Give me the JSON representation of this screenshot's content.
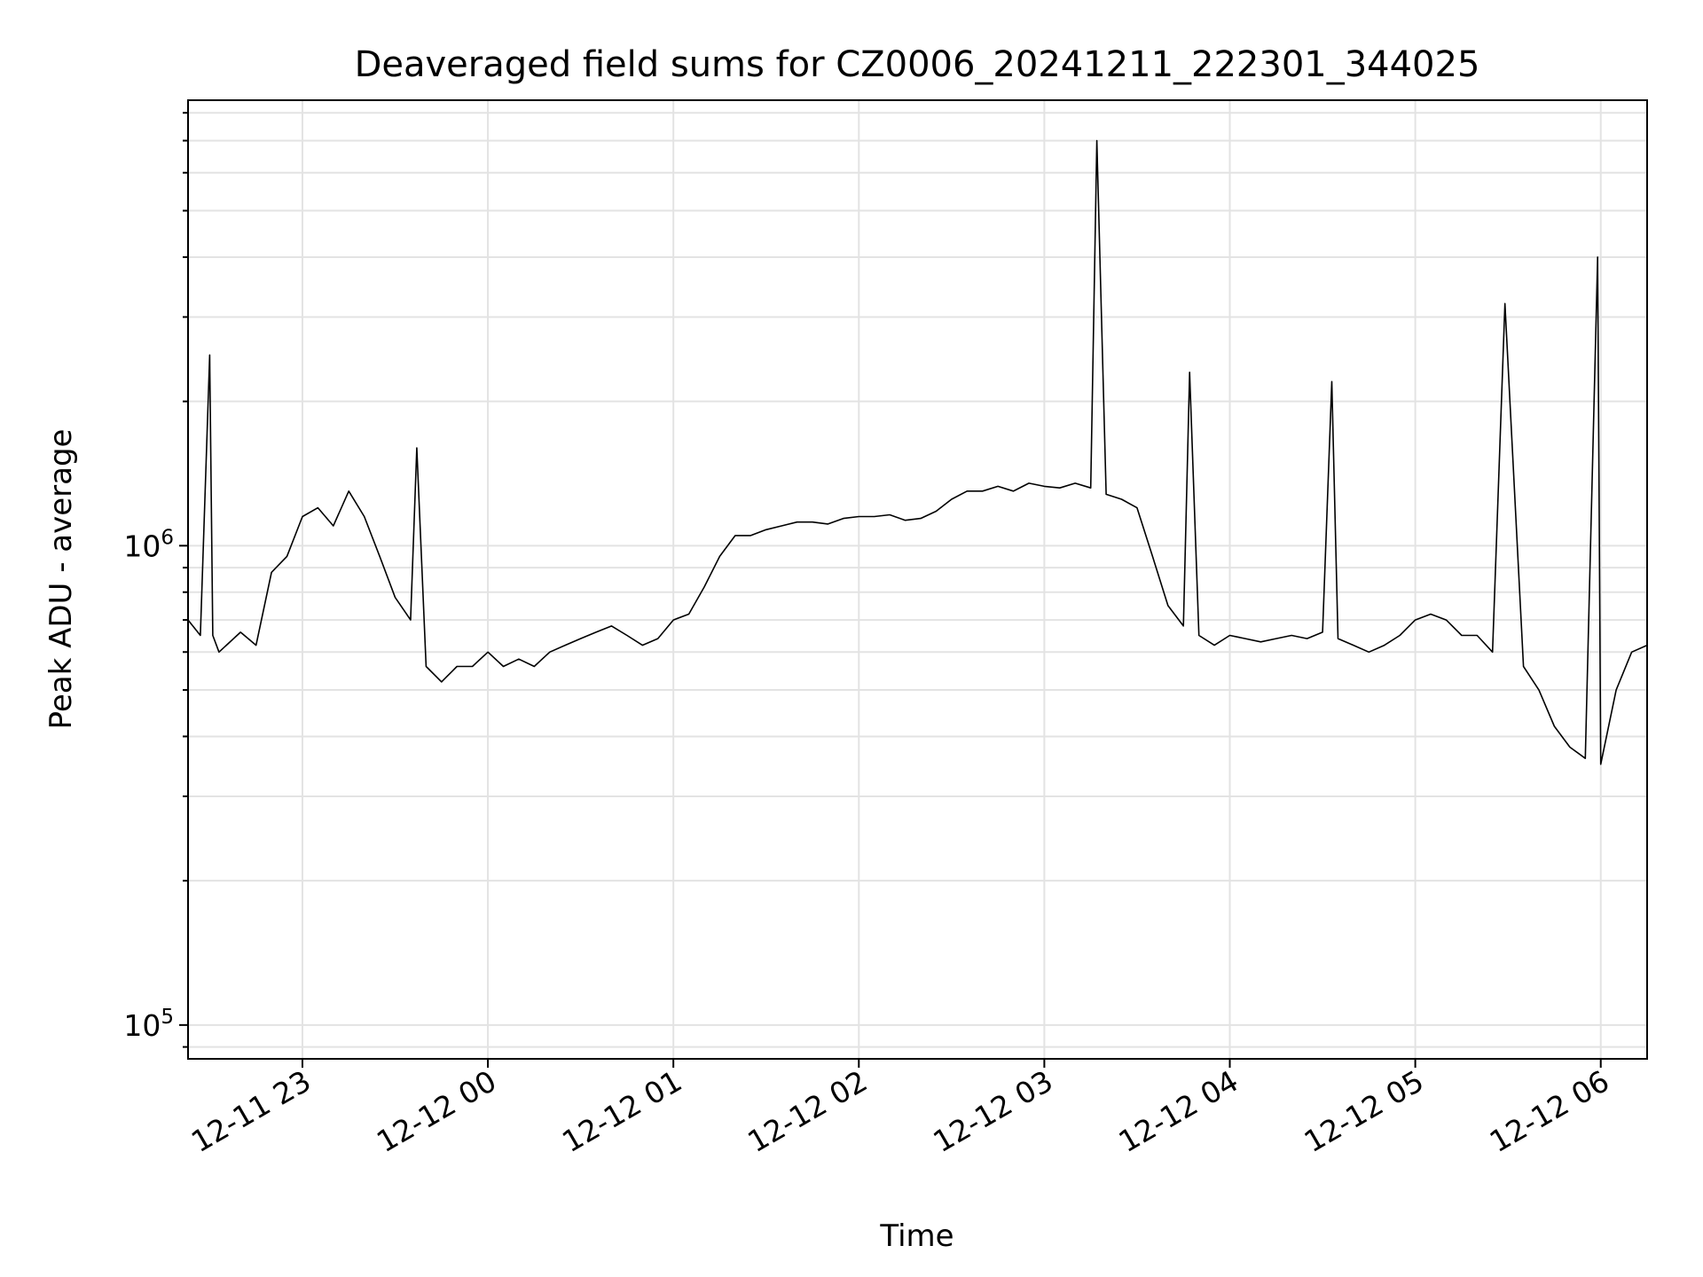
{
  "chart_data": {
    "type": "line",
    "title": "Deaveraged field sums for CZ0006_20241211_222301_344025",
    "xlabel": "Time",
    "ylabel": "Peak ADU - average",
    "yscale": "log",
    "xlim": [
      "2024-12-11 22:23",
      "2024-12-12 06:15"
    ],
    "ylim": [
      85000,
      8500000
    ],
    "grid": true,
    "line_color": "#000000",
    "x_tick_labels": [
      "12-11 23",
      "12-12 00",
      "12-12 01",
      "12-12 02",
      "12-12 03",
      "12-12 04",
      "12-12 05",
      "12-12 06"
    ],
    "x_tick_times": [
      "2024-12-11 23:00",
      "2024-12-12 00:00",
      "2024-12-12 01:00",
      "2024-12-12 02:00",
      "2024-12-12 03:00",
      "2024-12-12 04:00",
      "2024-12-12 05:00",
      "2024-12-12 06:00"
    ],
    "y_tick_labels": [
      {
        "base": "10",
        "exp": "5",
        "value": 100000
      },
      {
        "base": "10",
        "exp": "6",
        "value": 1000000
      }
    ],
    "series": [
      {
        "time": [
          "2024-12-11 22:23",
          "2024-12-11 22:27",
          "2024-12-11 22:30",
          "2024-12-11 22:31",
          "2024-12-11 22:33",
          "2024-12-11 22:40",
          "2024-12-11 22:45",
          "2024-12-11 22:50",
          "2024-12-11 22:55",
          "2024-12-11 23:00",
          "2024-12-11 23:05",
          "2024-12-11 23:10",
          "2024-12-11 23:15",
          "2024-12-11 23:20",
          "2024-12-11 23:25",
          "2024-12-11 23:30",
          "2024-12-11 23:35",
          "2024-12-11 23:37",
          "2024-12-11 23:40",
          "2024-12-11 23:45",
          "2024-12-11 23:50",
          "2024-12-11 23:55",
          "2024-12-12 00:00",
          "2024-12-12 00:05",
          "2024-12-12 00:10",
          "2024-12-12 00:15",
          "2024-12-12 00:20",
          "2024-12-12 00:25",
          "2024-12-12 00:30",
          "2024-12-12 00:35",
          "2024-12-12 00:40",
          "2024-12-12 00:45",
          "2024-12-12 00:50",
          "2024-12-12 00:55",
          "2024-12-12 01:00",
          "2024-12-12 01:05",
          "2024-12-12 01:10",
          "2024-12-12 01:15",
          "2024-12-12 01:20",
          "2024-12-12 01:25",
          "2024-12-12 01:30",
          "2024-12-12 01:35",
          "2024-12-12 01:40",
          "2024-12-12 01:45",
          "2024-12-12 01:50",
          "2024-12-12 01:55",
          "2024-12-12 02:00",
          "2024-12-12 02:05",
          "2024-12-12 02:10",
          "2024-12-12 02:15",
          "2024-12-12 02:20",
          "2024-12-12 02:25",
          "2024-12-12 02:30",
          "2024-12-12 02:35",
          "2024-12-12 02:40",
          "2024-12-12 02:45",
          "2024-12-12 02:50",
          "2024-12-12 02:55",
          "2024-12-12 03:00",
          "2024-12-12 03:05",
          "2024-12-12 03:10",
          "2024-12-12 03:15",
          "2024-12-12 03:17",
          "2024-12-12 03:20",
          "2024-12-12 03:25",
          "2024-12-12 03:30",
          "2024-12-12 03:35",
          "2024-12-12 03:40",
          "2024-12-12 03:45",
          "2024-12-12 03:47",
          "2024-12-12 03:50",
          "2024-12-12 03:55",
          "2024-12-12 04:00",
          "2024-12-12 04:05",
          "2024-12-12 04:10",
          "2024-12-12 04:15",
          "2024-12-12 04:20",
          "2024-12-12 04:25",
          "2024-12-12 04:30",
          "2024-12-12 04:33",
          "2024-12-12 04:35",
          "2024-12-12 04:40",
          "2024-12-12 04:45",
          "2024-12-12 04:50",
          "2024-12-12 04:55",
          "2024-12-12 05:00",
          "2024-12-12 05:05",
          "2024-12-12 05:10",
          "2024-12-12 05:15",
          "2024-12-12 05:20",
          "2024-12-12 05:25",
          "2024-12-12 05:29",
          "2024-12-12 05:35",
          "2024-12-12 05:40",
          "2024-12-12 05:45",
          "2024-12-12 05:50",
          "2024-12-12 05:55",
          "2024-12-12 05:59",
          "2024-12-12 06:00",
          "2024-12-12 06:05",
          "2024-12-12 06:10",
          "2024-12-12 06:15"
        ],
        "values": [
          700000,
          650000,
          2500000,
          650000,
          600000,
          660000,
          620000,
          880000,
          950000,
          1150000,
          1200000,
          1100000,
          1300000,
          1150000,
          950000,
          780000,
          700000,
          1600000,
          560000,
          520000,
          560000,
          560000,
          600000,
          560000,
          580000,
          560000,
          600000,
          620000,
          640000,
          660000,
          680000,
          650000,
          620000,
          640000,
          700000,
          720000,
          820000,
          950000,
          1050000,
          1050000,
          1080000,
          1100000,
          1120000,
          1120000,
          1110000,
          1140000,
          1150000,
          1150000,
          1160000,
          1130000,
          1140000,
          1180000,
          1250000,
          1300000,
          1300000,
          1330000,
          1300000,
          1350000,
          1330000,
          1320000,
          1350000,
          1320000,
          7000000,
          1280000,
          1250000,
          1200000,
          950000,
          750000,
          680000,
          2300000,
          650000,
          620000,
          650000,
          640000,
          630000,
          640000,
          650000,
          640000,
          660000,
          2200000,
          640000,
          620000,
          600000,
          620000,
          650000,
          700000,
          720000,
          700000,
          650000,
          650000,
          600000,
          3200000,
          560000,
          500000,
          420000,
          380000,
          360000,
          4000000,
          350000,
          500000,
          600000,
          620000
        ]
      }
    ]
  }
}
